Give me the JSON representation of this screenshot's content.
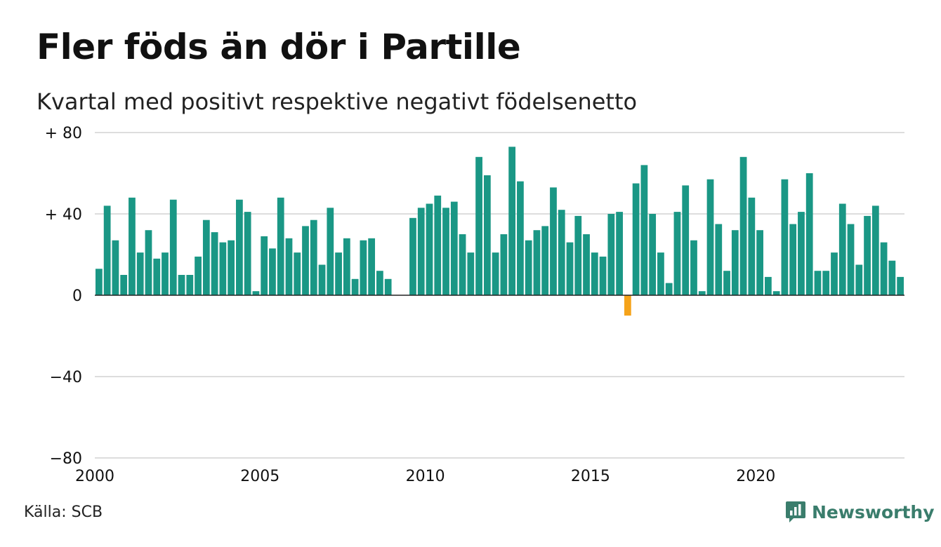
{
  "header": {
    "title": "Fler föds än dör i Partille",
    "subtitle": "Kvartal med positivt respektive negativt födelsenetto"
  },
  "footer": {
    "source": "Källa: SCB",
    "brand": "Newsworthy"
  },
  "colors": {
    "positive": "#1a9785",
    "negative": "#f5a31a",
    "grid": "#dddddd",
    "brand": "#3a7d6c"
  },
  "chart_data": {
    "type": "bar",
    "x_start": 2000.0,
    "x_step": 0.25,
    "xlim": [
      2000,
      2024.5
    ],
    "ylim": [
      -80,
      80
    ],
    "y_ticks": [
      80,
      40,
      0,
      -40,
      -80
    ],
    "y_tick_labels": [
      "+ 80",
      "+ 40",
      "0",
      "−40",
      "−80"
    ],
    "x_ticks": [
      2000,
      2005,
      2010,
      2015,
      2020
    ],
    "x_tick_labels": [
      "2000",
      "2005",
      "2010",
      "2015",
      "2020"
    ],
    "grid": true,
    "values": [
      13,
      44,
      27,
      10,
      48,
      21,
      32,
      18,
      21,
      47,
      10,
      10,
      19,
      37,
      31,
      26,
      27,
      47,
      41,
      2,
      29,
      23,
      48,
      28,
      21,
      34,
      37,
      15,
      43,
      21,
      28,
      8,
      27,
      28,
      12,
      8,
      0,
      0,
      38,
      43,
      45,
      49,
      43,
      46,
      30,
      21,
      68,
      59,
      21,
      30,
      73,
      56,
      27,
      32,
      34,
      53,
      42,
      26,
      39,
      30,
      21,
      19,
      40,
      41,
      -10,
      55,
      64,
      40,
      21,
      6,
      41,
      54,
      27,
      2,
      57,
      35,
      12,
      32,
      68,
      48,
      32,
      9,
      2,
      57,
      35,
      41,
      60,
      12,
      12,
      21,
      45,
      35,
      15,
      39,
      44,
      26,
      17,
      9
    ]
  }
}
